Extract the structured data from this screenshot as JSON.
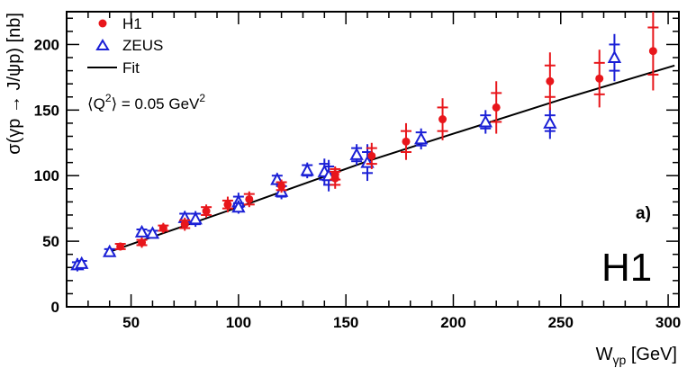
{
  "chart_data": {
    "type": "scatter",
    "title": "",
    "xlabel_main": "W",
    "xlabel_sub": "γp",
    "xlabel_unit": " [GeV]",
    "ylabel": "σ(γp → J/ψp) [nb]",
    "xlim": [
      20,
      305
    ],
    "ylim": [
      0,
      225
    ],
    "x_ticks": [
      50,
      100,
      150,
      200,
      250,
      300
    ],
    "y_ticks": [
      0,
      50,
      100,
      150,
      200
    ],
    "panel_label": "a)",
    "logo_text": "H1",
    "annotation": {
      "prefix": "⟨Q",
      "sup": "2",
      "middle": "⟩ = 0.05 GeV",
      "sup2": "2"
    },
    "legend": [
      {
        "label": "H1",
        "marker": "circle",
        "color": "#e8161b"
      },
      {
        "label": "ZEUS",
        "marker": "triangle-open",
        "color": "#1b20d6"
      },
      {
        "label": "Fit",
        "marker": "line",
        "color": "#000000"
      }
    ],
    "series": [
      {
        "name": "H1",
        "marker": "circle",
        "color": "#e8161b",
        "points": [
          {
            "x": 45,
            "y": 46,
            "err_stat": 2,
            "err_tot": 3
          },
          {
            "x": 55,
            "y": 49,
            "err_stat": 2,
            "err_tot": 4
          },
          {
            "x": 65,
            "y": 60,
            "err_stat": 2,
            "err_tot": 4
          },
          {
            "x": 75,
            "y": 63,
            "err_stat": 3,
            "err_tot": 5
          },
          {
            "x": 85,
            "y": 73,
            "err_stat": 3,
            "err_tot": 5
          },
          {
            "x": 95,
            "y": 78,
            "err_stat": 3,
            "err_tot": 6
          },
          {
            "x": 105,
            "y": 82,
            "err_stat": 4,
            "err_tot": 6
          },
          {
            "x": 120,
            "y": 92,
            "err_stat": 3,
            "err_tot": 5
          },
          {
            "x": 145,
            "y": 98,
            "err_stat": 5,
            "err_tot": 8
          },
          {
            "x": 145,
            "y": 101,
            "err_stat": 4,
            "err_tot": 6
          },
          {
            "x": 162,
            "y": 115,
            "err_stat": 6,
            "err_tot": 10
          },
          {
            "x": 178,
            "y": 126,
            "err_stat": 8,
            "err_tot": 14
          },
          {
            "x": 195,
            "y": 143,
            "err_stat": 9,
            "err_tot": 16
          },
          {
            "x": 220,
            "y": 152,
            "err_stat": 11,
            "err_tot": 20
          },
          {
            "x": 245,
            "y": 172,
            "err_stat": 12,
            "err_tot": 22
          },
          {
            "x": 268,
            "y": 174,
            "err_stat": 12,
            "err_tot": 22
          },
          {
            "x": 293,
            "y": 195,
            "err_stat": 18,
            "err_tot": 30
          }
        ]
      },
      {
        "name": "ZEUS",
        "marker": "triangle-open",
        "color": "#1b20d6",
        "points": [
          {
            "x": 25,
            "y": 32,
            "err_stat": 2,
            "err_tot": 5
          },
          {
            "x": 27,
            "y": 33,
            "err_stat": 2,
            "err_tot": 3
          },
          {
            "x": 40,
            "y": 42,
            "err_stat": 2,
            "err_tot": 3
          },
          {
            "x": 55,
            "y": 57,
            "err_stat": 2,
            "err_tot": 3
          },
          {
            "x": 60,
            "y": 56,
            "err_stat": 2,
            "err_tot": 3
          },
          {
            "x": 75,
            "y": 68,
            "err_stat": 3,
            "err_tot": 5
          },
          {
            "x": 80,
            "y": 67,
            "err_stat": 4,
            "err_tot": 6
          },
          {
            "x": 100,
            "y": 80,
            "err_stat": 4,
            "err_tot": 7
          },
          {
            "x": 100,
            "y": 76,
            "err_stat": 3,
            "err_tot": 5
          },
          {
            "x": 118,
            "y": 97,
            "err_stat": 3,
            "err_tot": 5
          },
          {
            "x": 120,
            "y": 88,
            "err_stat": 4,
            "err_tot": 6
          },
          {
            "x": 132,
            "y": 104,
            "err_stat": 4,
            "err_tot": 6
          },
          {
            "x": 140,
            "y": 103,
            "err_stat": 6,
            "err_tot": 10
          },
          {
            "x": 142,
            "y": 100,
            "err_stat": 7,
            "err_tot": 12
          },
          {
            "x": 155,
            "y": 116,
            "err_stat": 5,
            "err_tot": 8
          },
          {
            "x": 160,
            "y": 110,
            "err_stat": 8,
            "err_tot": 14
          },
          {
            "x": 185,
            "y": 128,
            "err_stat": 5,
            "err_tot": 8
          },
          {
            "x": 215,
            "y": 141,
            "err_stat": 5,
            "err_tot": 9
          },
          {
            "x": 245,
            "y": 140,
            "err_stat": 6,
            "err_tot": 12
          },
          {
            "x": 275,
            "y": 190,
            "err_stat": 10,
            "err_tot": 18
          }
        ]
      },
      {
        "name": "Fit",
        "marker": "line",
        "color": "#000000",
        "points": [
          {
            "x": 40,
            "y": 42
          },
          {
            "x": 100,
            "y": 76
          },
          {
            "x": 160,
            "y": 111
          },
          {
            "x": 200,
            "y": 132
          },
          {
            "x": 250,
            "y": 158
          },
          {
            "x": 303,
            "y": 184
          }
        ]
      }
    ]
  }
}
